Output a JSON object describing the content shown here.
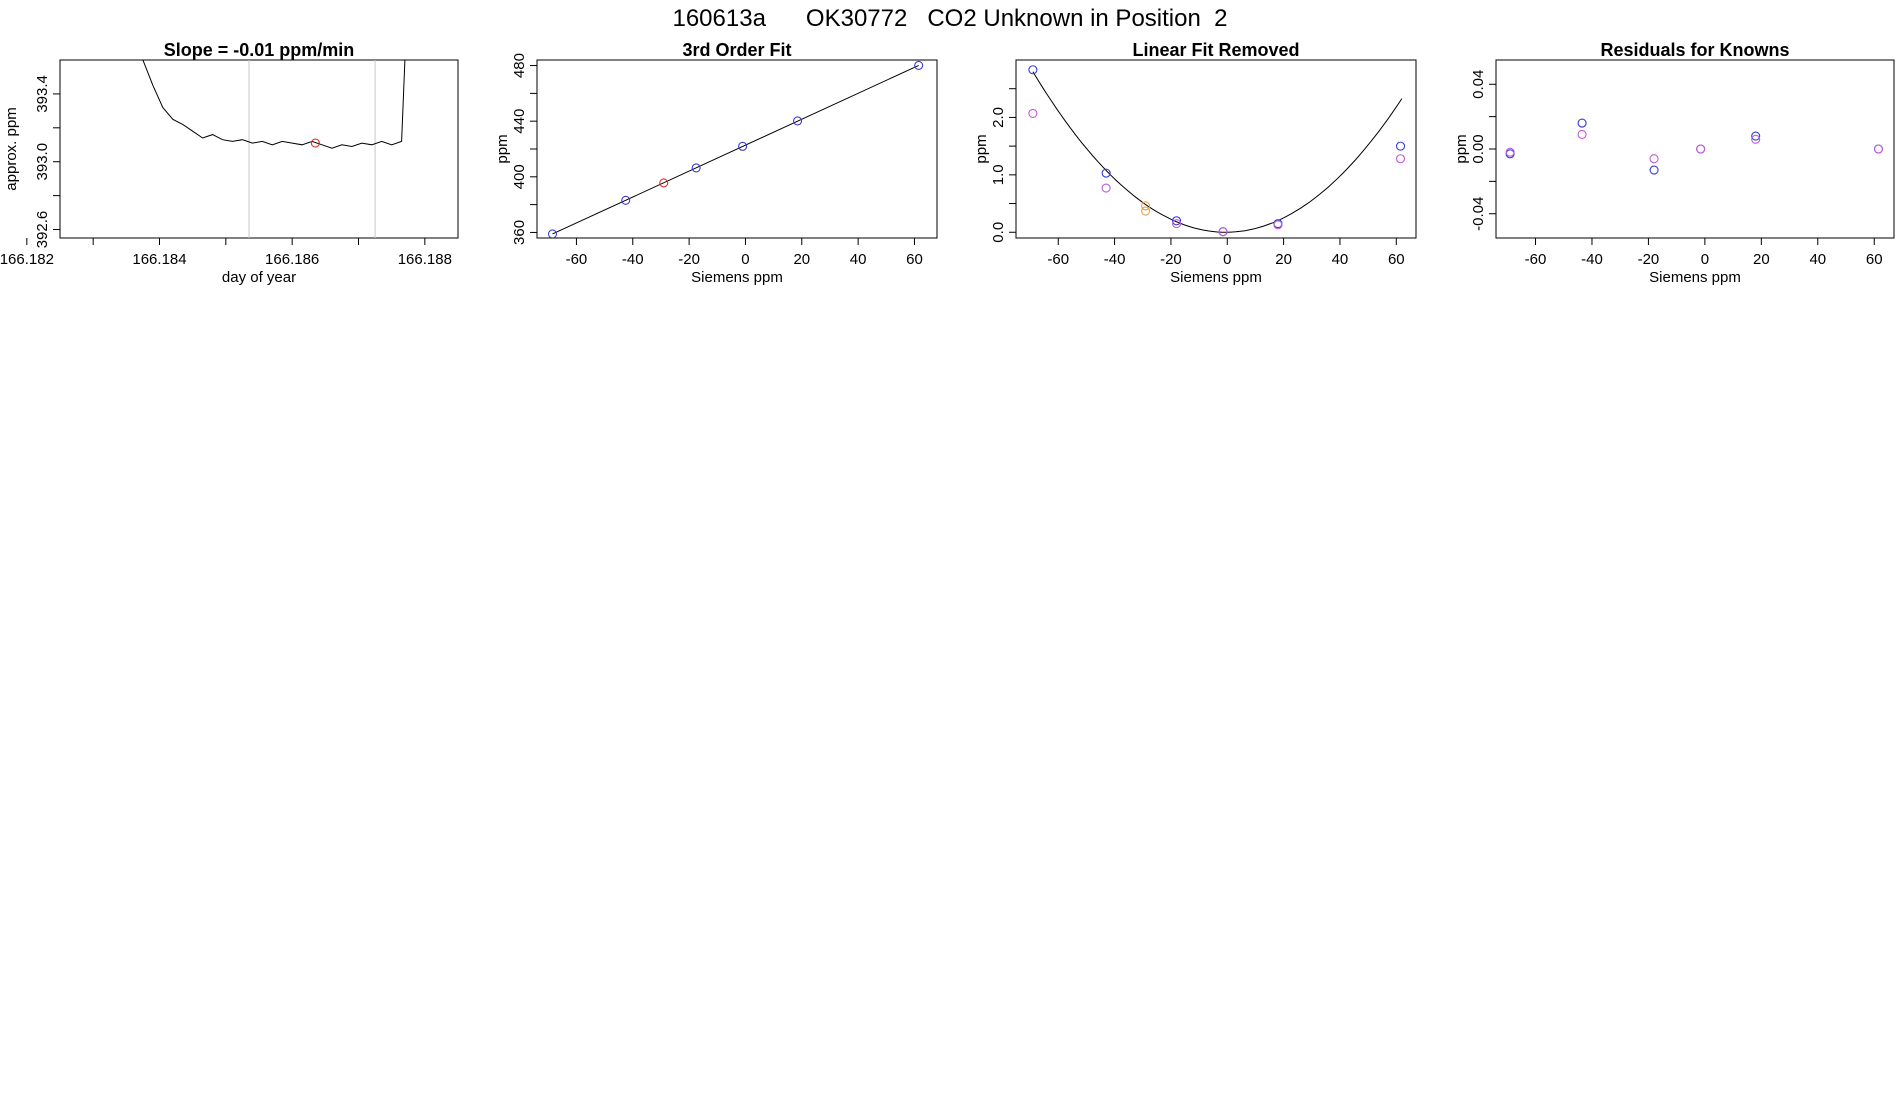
{
  "title": "160613a      OK30772   CO2 Unknown in Position  2",
  "colors": {
    "blue": "#3a3ad6",
    "red": "#e0302a",
    "magenta": "#c45ad8",
    "orange": "#f0a040",
    "purple": "#7a3ad6"
  },
  "chart_data": [
    {
      "type": "line",
      "title": "Slope =  -0.01  ppm/min",
      "xlabel": "day of year",
      "ylabel": "approx. ppm",
      "xlim": [
        166.182,
        166.188
      ],
      "ylim": [
        392.55,
        393.6
      ],
      "xticks": [
        "166.182",
        "166.184",
        "166.186",
        "166.188"
      ],
      "xtick_values": [
        166.1815,
        166.1835,
        166.1855,
        166.1875
      ],
      "minor_xticks": [
        166.1825,
        166.1845,
        166.1865
      ],
      "yticks": [
        "392.6",
        "393.0",
        "393.4"
      ],
      "ytick_values": [
        392.6,
        393.0,
        393.4
      ],
      "minor_yticks": [
        392.8,
        393.2
      ],
      "vlines": [
        166.18485,
        166.18675
      ],
      "series": [
        {
          "x": [
            166.18325,
            166.1834,
            166.18355,
            166.1837,
            166.18385,
            166.184,
            166.18415,
            166.1843,
            166.18445,
            166.1846,
            166.18475,
            166.1849,
            166.18505,
            166.1852,
            166.18535,
            166.1855,
            166.18565,
            166.1858,
            166.18595,
            166.1861,
            166.18625,
            166.1864,
            166.18655,
            166.1867,
            166.18685,
            166.187,
            166.18715,
            166.1872
          ],
          "y": [
            393.6,
            393.45,
            393.32,
            393.25,
            393.22,
            393.18,
            393.14,
            393.16,
            393.13,
            393.12,
            393.13,
            393.11,
            393.12,
            393.1,
            393.12,
            393.11,
            393.1,
            393.12,
            393.1,
            393.08,
            393.1,
            393.09,
            393.11,
            393.1,
            393.12,
            393.1,
            393.12,
            393.6
          ]
        }
      ],
      "marker": {
        "x": 166.18585,
        "y": 393.11
      }
    },
    {
      "type": "scatter",
      "title": "3rd Order Fit",
      "xlabel": "Siemens ppm",
      "ylabel": "ppm",
      "xlim": [
        -74,
        68
      ],
      "ylim": [
        356,
        484
      ],
      "xticks": [
        "-60",
        "-40",
        "-20",
        "0",
        "20",
        "40",
        "60"
      ],
      "xtick_values": [
        -60,
        -40,
        -20,
        0,
        20,
        40,
        60
      ],
      "yticks": [
        "360",
        "400",
        "440",
        "480"
      ],
      "ytick_values": [
        360,
        400,
        440,
        480
      ],
      "minor_yticks": [
        380,
        420,
        460
      ],
      "fit_line": {
        "x": [
          -68.5,
          61.5
        ],
        "y": [
          358.9,
          480.1
        ]
      },
      "series": [
        {
          "name": "",
          "color": "blue",
          "x": [
            -68.5,
            -42.5,
            -17.5,
            -1,
            18.5,
            61.5
          ],
          "y": [
            358.9,
            383.1,
            406.4,
            421.9,
            440.2,
            480.1
          ]
        },
        {
          "name": "",
          "color": "red",
          "x": [
            -29
          ],
          "y": [
            395.6
          ]
        }
      ]
    },
    {
      "type": "scatter",
      "title": "Linear Fit Removed",
      "xlabel": "Siemens ppm",
      "ylabel": "ppm",
      "xlim": [
        -75,
        67
      ],
      "ylim": [
        -0.1,
        3.0
      ],
      "xticks": [
        "-60",
        "-40",
        "-20",
        "0",
        "20",
        "40",
        "60"
      ],
      "xtick_values": [
        -60,
        -40,
        -20,
        0,
        20,
        40,
        60
      ],
      "yticks": [
        "0.0",
        "1.0",
        "2.0"
      ],
      "ytick_values": [
        0.0,
        1.0,
        2.0
      ],
      "minor_yticks": [
        0.5,
        1.5,
        2.5
      ],
      "fit_curve": {
        "x0": -0.5,
        "a": 0.000596,
        "xmin": -69,
        "xmax": 62
      },
      "series": [
        {
          "name": "",
          "color": "blue",
          "x": [
            -69,
            -43,
            -18,
            -1.5,
            18,
            61.5
          ],
          "y": [
            2.83,
            1.03,
            0.2,
            0.01,
            0.15,
            1.5
          ]
        },
        {
          "name": "",
          "color": "magenta",
          "x": [
            -69,
            -43,
            -18,
            -1.5,
            18,
            61.5
          ],
          "y": [
            2.07,
            0.77,
            0.15,
            0.01,
            0.13,
            1.28
          ]
        },
        {
          "name": "",
          "color": "orange",
          "x": [
            -29,
            -29
          ],
          "y": [
            0.46,
            0.37
          ]
        }
      ]
    },
    {
      "type": "scatter",
      "title": "Residuals for Knowns",
      "xlabel": "Siemens ppm",
      "ylabel": "ppm",
      "xlim": [
        -74,
        67
      ],
      "ylim": [
        -0.055,
        0.055
      ],
      "xticks": [
        "-60",
        "-40",
        "-20",
        "0",
        "20",
        "40",
        "60"
      ],
      "xtick_values": [
        -60,
        -40,
        -20,
        0,
        20,
        40,
        60
      ],
      "yticks": [
        "-0.04",
        "0.00",
        "0.04"
      ],
      "ytick_values": [
        -0.04,
        0.0,
        0.04
      ],
      "minor_yticks": [
        -0.02,
        0.02
      ],
      "series": [
        {
          "name": "",
          "color": "blue",
          "x": [
            -69,
            -43.5,
            -18,
            -1.5,
            18,
            61.5
          ],
          "y": [
            -0.003,
            0.016,
            -0.013,
            0.0,
            0.008,
            0.0
          ]
        },
        {
          "name": "",
          "color": "magenta",
          "x": [
            -69,
            -43.5,
            -18,
            -1.5,
            18,
            61.5
          ],
          "y": [
            -0.002,
            0.009,
            -0.006,
            0.0,
            0.006,
            0.0
          ]
        }
      ]
    }
  ]
}
